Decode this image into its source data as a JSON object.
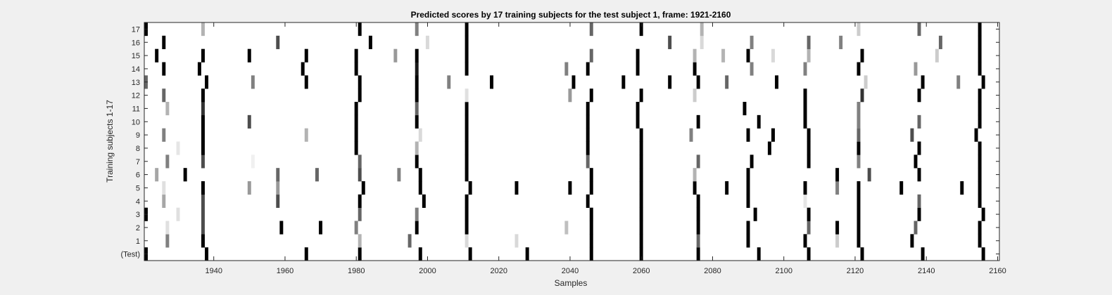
{
  "chart_data": {
    "type": "heatmap",
    "title": "Predicted scores by 17 training subjects for the test subject 1, frame: 1921-2160",
    "xlabel": "Samples",
    "ylabel": "Training subjects 1-17",
    "xlim": [
      1921,
      2160
    ],
    "x_ticks": [
      1940,
      1960,
      1980,
      2000,
      2020,
      2040,
      2060,
      2080,
      2100,
      2120,
      2140,
      2160
    ],
    "y_tick_labels": [
      "(Test)",
      "1",
      "2",
      "3",
      "4",
      "5",
      "6",
      "7",
      "8",
      "9",
      "10",
      "11",
      "12",
      "13",
      "14",
      "15",
      "16",
      "17"
    ],
    "value_encoding": "grayscale intensity 0 (white) to 1 (black)",
    "rows": [
      {
        "label": "(Test)",
        "marks": [
          [
            1921,
            1
          ],
          [
            1938,
            1
          ],
          [
            1966,
            1
          ],
          [
            1981,
            1
          ],
          [
            1998,
            1
          ],
          [
            2012,
            1
          ],
          [
            2028,
            1
          ],
          [
            2046,
            1
          ],
          [
            2060,
            1
          ],
          [
            2076,
            1
          ],
          [
            2093,
            1
          ],
          [
            2107,
            1
          ],
          [
            2122,
            1
          ],
          [
            2139,
            1
          ],
          [
            2156,
            1
          ]
        ]
      },
      {
        "label": "1",
        "marks": [
          [
            1927,
            0.5
          ],
          [
            1937,
            1
          ],
          [
            1981,
            0.3
          ],
          [
            1995,
            0.6
          ],
          [
            2011,
            0.15
          ],
          [
            2025,
            0.15
          ],
          [
            2046,
            1
          ],
          [
            2060,
            1
          ],
          [
            2076,
            0.6
          ],
          [
            2090,
            1
          ],
          [
            2106,
            1
          ],
          [
            2115,
            0.2
          ],
          [
            2121,
            1
          ],
          [
            2136,
            1
          ],
          [
            2155,
            1
          ]
        ]
      },
      {
        "label": "2",
        "marks": [
          [
            1927,
            0.12
          ],
          [
            1937,
            0.7
          ],
          [
            1959,
            1
          ],
          [
            1970,
            1
          ],
          [
            1980,
            0.5
          ],
          [
            1997,
            1
          ],
          [
            2011,
            1
          ],
          [
            2039,
            0.25
          ],
          [
            2046,
            1
          ],
          [
            2060,
            1
          ],
          [
            2076,
            1
          ],
          [
            2090,
            1
          ],
          [
            2107,
            0.6
          ],
          [
            2115,
            1
          ],
          [
            2121,
            1
          ],
          [
            2137,
            0.6
          ],
          [
            2155,
            1
          ]
        ]
      },
      {
        "label": "3",
        "marks": [
          [
            1921,
            1
          ],
          [
            1930,
            0.12
          ],
          [
            1937,
            0.7
          ],
          [
            1981,
            0.6
          ],
          [
            1997,
            0.5
          ],
          [
            2011,
            1
          ],
          [
            2046,
            1
          ],
          [
            2060,
            1
          ],
          [
            2076,
            1
          ],
          [
            2092,
            1
          ],
          [
            2107,
            1
          ],
          [
            2121,
            1
          ],
          [
            2138,
            1
          ],
          [
            2156,
            1
          ]
        ]
      },
      {
        "label": "4",
        "marks": [
          [
            1926,
            0.35
          ],
          [
            1937,
            0.7
          ],
          [
            1958,
            0.7
          ],
          [
            1981,
            1
          ],
          [
            1999,
            1
          ],
          [
            2011,
            1
          ],
          [
            2045,
            1
          ],
          [
            2060,
            1
          ],
          [
            2076,
            1
          ],
          [
            2090,
            1
          ],
          [
            2106,
            0.1
          ],
          [
            2121,
            1
          ],
          [
            2138,
            0.6
          ],
          [
            2155,
            1
          ]
        ]
      },
      {
        "label": "5",
        "marks": [
          [
            1926,
            0.12
          ],
          [
            1937,
            1
          ],
          [
            1950,
            0.4
          ],
          [
            1958,
            0.4
          ],
          [
            1982,
            1
          ],
          [
            1998,
            1
          ],
          [
            2012,
            1
          ],
          [
            2025,
            1
          ],
          [
            2040,
            1
          ],
          [
            2046,
            1
          ],
          [
            2060,
            1
          ],
          [
            2075,
            1
          ],
          [
            2084,
            1
          ],
          [
            2090,
            1
          ],
          [
            2106,
            1
          ],
          [
            2115,
            0.5
          ],
          [
            2121,
            1
          ],
          [
            2133,
            1
          ],
          [
            2150,
            1
          ],
          [
            2155,
            1
          ]
        ]
      },
      {
        "label": "6",
        "marks": [
          [
            1924,
            0.35
          ],
          [
            1932,
            1
          ],
          [
            1958,
            0.6
          ],
          [
            1969,
            0.6
          ],
          [
            1981,
            0.7
          ],
          [
            1992,
            0.5
          ],
          [
            1998,
            1
          ],
          [
            2011,
            1
          ],
          [
            2046,
            1
          ],
          [
            2060,
            1
          ],
          [
            2075,
            0.3
          ],
          [
            2090,
            1
          ],
          [
            2115,
            1
          ],
          [
            2124,
            0.7
          ],
          [
            2138,
            1
          ],
          [
            2155,
            1
          ]
        ]
      },
      {
        "label": "7",
        "marks": [
          [
            1927,
            0.5
          ],
          [
            1937,
            0.7
          ],
          [
            1951,
            0.06
          ],
          [
            1981,
            0.6
          ],
          [
            1997,
            1
          ],
          [
            2011,
            1
          ],
          [
            2045,
            0.6
          ],
          [
            2060,
            1
          ],
          [
            2076,
            0.6
          ],
          [
            2091,
            1
          ],
          [
            2107,
            1
          ],
          [
            2121,
            0.5
          ],
          [
            2137,
            1
          ],
          [
            2155,
            1
          ]
        ]
      },
      {
        "label": "8",
        "marks": [
          [
            1930,
            0.1
          ],
          [
            1937,
            1
          ],
          [
            1980,
            1
          ],
          [
            1997,
            0.3
          ],
          [
            2011,
            1
          ],
          [
            2045,
            1
          ],
          [
            2060,
            1
          ],
          [
            2096,
            1
          ],
          [
            2107,
            1
          ],
          [
            2121,
            1
          ],
          [
            2138,
            1
          ],
          [
            2155,
            1
          ]
        ]
      },
      {
        "label": "9",
        "marks": [
          [
            1926,
            0.5
          ],
          [
            1937,
            1
          ],
          [
            1966,
            0.3
          ],
          [
            1980,
            1
          ],
          [
            1998,
            0.15
          ],
          [
            2011,
            1
          ],
          [
            2045,
            1
          ],
          [
            2060,
            1
          ],
          [
            2074,
            0.5
          ],
          [
            2090,
            1
          ],
          [
            2097,
            1
          ],
          [
            2107,
            1
          ],
          [
            2121,
            0.6
          ],
          [
            2136,
            0.7
          ],
          [
            2154,
            1
          ]
        ]
      },
      {
        "label": "10",
        "marks": [
          [
            1937,
            1
          ],
          [
            1950,
            0.7
          ],
          [
            1980,
            1
          ],
          [
            1997,
            1
          ],
          [
            2011,
            1
          ],
          [
            2045,
            1
          ],
          [
            2059,
            1
          ],
          [
            2076,
            1
          ],
          [
            2093,
            1
          ],
          [
            2106,
            1
          ],
          [
            2121,
            0.5
          ],
          [
            2138,
            0.6
          ],
          [
            2155,
            1
          ]
        ]
      },
      {
        "label": "11",
        "marks": [
          [
            1927,
            0.3
          ],
          [
            1937,
            0.8
          ],
          [
            1980,
            1
          ],
          [
            1997,
            0.6
          ],
          [
            2011,
            1
          ],
          [
            2045,
            1
          ],
          [
            2059,
            1
          ],
          [
            2089,
            1
          ],
          [
            2106,
            1
          ],
          [
            2121,
            0.5
          ],
          [
            2155,
            1
          ]
        ]
      },
      {
        "label": "12",
        "marks": [
          [
            1926,
            0.6
          ],
          [
            1937,
            1
          ],
          [
            1981,
            1
          ],
          [
            1997,
            1
          ],
          [
            2011,
            0.12
          ],
          [
            2040,
            0.4
          ],
          [
            2046,
            1
          ],
          [
            2060,
            1
          ],
          [
            2075,
            0.2
          ],
          [
            2106,
            1
          ],
          [
            2122,
            0.8
          ],
          [
            2138,
            1
          ],
          [
            2155,
            1
          ]
        ]
      },
      {
        "label": "13",
        "marks": [
          [
            1921,
            0.6
          ],
          [
            1938,
            1
          ],
          [
            1951,
            0.5
          ],
          [
            1966,
            1
          ],
          [
            1981,
            1
          ],
          [
            1997,
            1
          ],
          [
            2006,
            0.5
          ],
          [
            2018,
            1
          ],
          [
            2041,
            1
          ],
          [
            2055,
            1
          ],
          [
            2068,
            1
          ],
          [
            2076,
            1
          ],
          [
            2084,
            0.6
          ],
          [
            2098,
            1
          ],
          [
            2123,
            0.2
          ],
          [
            2139,
            1
          ],
          [
            2149,
            0.5
          ],
          [
            2156,
            1
          ]
        ]
      },
      {
        "label": "14",
        "marks": [
          [
            1926,
            1
          ],
          [
            1936,
            1
          ],
          [
            1965,
            1
          ],
          [
            1980,
            1
          ],
          [
            1997,
            0.9
          ],
          [
            2011,
            1
          ],
          [
            2039,
            0.5
          ],
          [
            2045,
            1
          ],
          [
            2059,
            1
          ],
          [
            2075,
            1
          ],
          [
            2091,
            0.5
          ],
          [
            2106,
            0.5
          ],
          [
            2121,
            1
          ],
          [
            2137,
            0.4
          ],
          [
            2155,
            1
          ]
        ]
      },
      {
        "label": "15",
        "marks": [
          [
            1924,
            1
          ],
          [
            1937,
            1
          ],
          [
            1950,
            1
          ],
          [
            1966,
            1
          ],
          [
            1980,
            1
          ],
          [
            1991,
            0.4
          ],
          [
            1997,
            1
          ],
          [
            2011,
            1
          ],
          [
            2046,
            0.6
          ],
          [
            2059,
            1
          ],
          [
            2075,
            0.3
          ],
          [
            2083,
            0.3
          ],
          [
            2090,
            1
          ],
          [
            2097,
            0.15
          ],
          [
            2107,
            0.3
          ],
          [
            2122,
            1
          ],
          [
            2143,
            0.2
          ],
          [
            2155,
            1
          ]
        ]
      },
      {
        "label": "16",
        "marks": [
          [
            1926,
            1
          ],
          [
            1958,
            0.7
          ],
          [
            1984,
            1
          ],
          [
            2000,
            0.15
          ],
          [
            2011,
            1
          ],
          [
            2068,
            0.7
          ],
          [
            2077,
            0.15
          ],
          [
            2091,
            0.5
          ],
          [
            2107,
            0.6
          ],
          [
            2116,
            0.5
          ],
          [
            2144,
            0.6
          ],
          [
            2155,
            1
          ]
        ]
      },
      {
        "label": "17",
        "marks": [
          [
            1921,
            1
          ],
          [
            1937,
            0.3
          ],
          [
            1981,
            1
          ],
          [
            1997,
            0.5
          ],
          [
            2011,
            1
          ],
          [
            2046,
            0.6
          ],
          [
            2060,
            1
          ],
          [
            2077,
            0.3
          ],
          [
            2121,
            0.2
          ],
          [
            2138,
            0.6
          ],
          [
            2155,
            1
          ]
        ]
      }
    ]
  }
}
